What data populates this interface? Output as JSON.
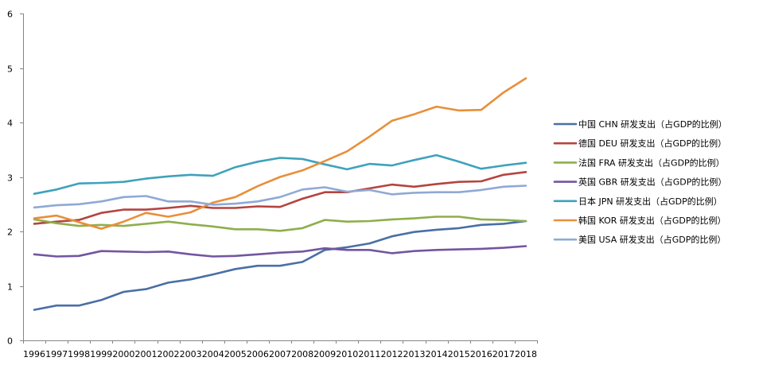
{
  "chart_data": {
    "type": "line",
    "title": "",
    "xlabel": "",
    "ylabel": "",
    "x": [
      "1996",
      "1997",
      "1998",
      "1999",
      "2000",
      "2001",
      "2002",
      "2003",
      "2004",
      "2005",
      "2006",
      "2007",
      "2008",
      "2009",
      "2010",
      "2011",
      "2012",
      "2013",
      "2014",
      "2015",
      "2016",
      "2017",
      "2018"
    ],
    "ylim": [
      0,
      6
    ],
    "yticks": [
      0,
      1,
      2,
      3,
      4,
      5,
      6
    ],
    "grid": false,
    "legend_position": "right",
    "series": [
      {
        "name": "中国 CHN 研发支出（占GDP的比例）",
        "color": "#4a6fa5",
        "values": [
          0.56,
          0.64,
          0.64,
          0.74,
          0.89,
          0.94,
          1.06,
          1.12,
          1.21,
          1.31,
          1.37,
          1.37,
          1.44,
          1.66,
          1.71,
          1.78,
          1.91,
          1.99,
          2.03,
          2.06,
          2.12,
          2.14,
          2.19
        ]
      },
      {
        "name": "德国 DEU 研发支出（占GDP的比例）",
        "color": "#b5443f",
        "values": [
          2.14,
          2.18,
          2.21,
          2.34,
          2.4,
          2.4,
          2.43,
          2.47,
          2.43,
          2.43,
          2.46,
          2.45,
          2.6,
          2.72,
          2.72,
          2.79,
          2.86,
          2.82,
          2.87,
          2.91,
          2.92,
          3.04,
          3.09
        ]
      },
      {
        "name": "法国 FRA 研发支出（占GDP的比例）",
        "color": "#8fae4c",
        "values": [
          2.22,
          2.15,
          2.1,
          2.12,
          2.1,
          2.14,
          2.18,
          2.13,
          2.09,
          2.04,
          2.04,
          2.01,
          2.06,
          2.21,
          2.18,
          2.19,
          2.22,
          2.24,
          2.27,
          2.27,
          2.22,
          2.21,
          2.19
        ]
      },
      {
        "name": "英国 GBR 研发支出（占GDP的比例）",
        "color": "#7355a0",
        "values": [
          1.58,
          1.54,
          1.55,
          1.64,
          1.63,
          1.62,
          1.63,
          1.58,
          1.54,
          1.55,
          1.58,
          1.61,
          1.63,
          1.69,
          1.66,
          1.66,
          1.6,
          1.64,
          1.66,
          1.67,
          1.68,
          1.7,
          1.73
        ]
      },
      {
        "name": "日本 JPN 研发支出（占GDP的比例）",
        "color": "#3fa2bb",
        "values": [
          2.69,
          2.77,
          2.88,
          2.89,
          2.91,
          2.97,
          3.01,
          3.04,
          3.02,
          3.18,
          3.28,
          3.35,
          3.33,
          3.23,
          3.14,
          3.24,
          3.21,
          3.31,
          3.4,
          3.28,
          3.15,
          3.21,
          3.26
        ]
      },
      {
        "name": "韩国 KOR 研发支出（占GDP的比例）",
        "color": "#e88f3a",
        "values": [
          2.24,
          2.29,
          2.17,
          2.05,
          2.18,
          2.34,
          2.27,
          2.35,
          2.53,
          2.63,
          2.83,
          3.0,
          3.12,
          3.29,
          3.47,
          3.74,
          4.03,
          4.15,
          4.29,
          4.22,
          4.23,
          4.55,
          4.81
        ]
      },
      {
        "name": "美国 USA 研发支出（占GDP的比例）",
        "color": "#8fa9d6",
        "values": [
          2.44,
          2.48,
          2.5,
          2.55,
          2.63,
          2.65,
          2.55,
          2.55,
          2.49,
          2.51,
          2.55,
          2.63,
          2.77,
          2.81,
          2.73,
          2.76,
          2.68,
          2.71,
          2.72,
          2.72,
          2.76,
          2.82,
          2.84
        ]
      }
    ]
  }
}
